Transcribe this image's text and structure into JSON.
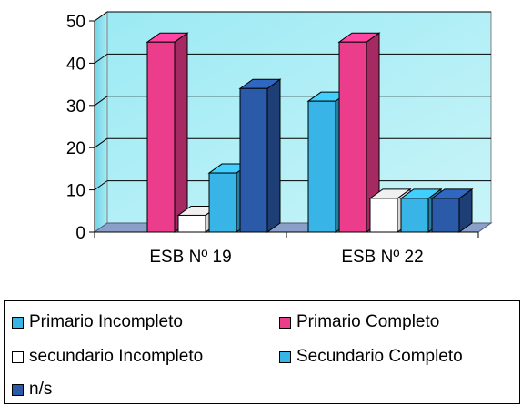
{
  "chart_data": {
    "type": "bar",
    "categories": [
      "ESB Nº 19",
      "ESB Nº 22"
    ],
    "series": [
      {
        "name": "Primario Incompleto",
        "color": "#38b4e6",
        "values": [
          0,
          31
        ]
      },
      {
        "name": "Primario Completo",
        "color": "#ec3c8c",
        "values": [
          45,
          45
        ]
      },
      {
        "name": "secundario Incompleto",
        "color": "#ffffff",
        "values": [
          4,
          8
        ]
      },
      {
        "name": "Secundario Completo",
        "color": "#38b4e6",
        "values": [
          14,
          8
        ]
      },
      {
        "name": "n/s",
        "color": "#2a5aa8",
        "values": [
          34,
          8
        ]
      }
    ],
    "ylim": [
      0,
      50
    ],
    "yticks": [
      "0",
      "10",
      "20",
      "30",
      "40",
      "50"
    ],
    "grid": true,
    "legend_position": "bottom",
    "title": "",
    "xlabel": "",
    "ylabel": ""
  }
}
